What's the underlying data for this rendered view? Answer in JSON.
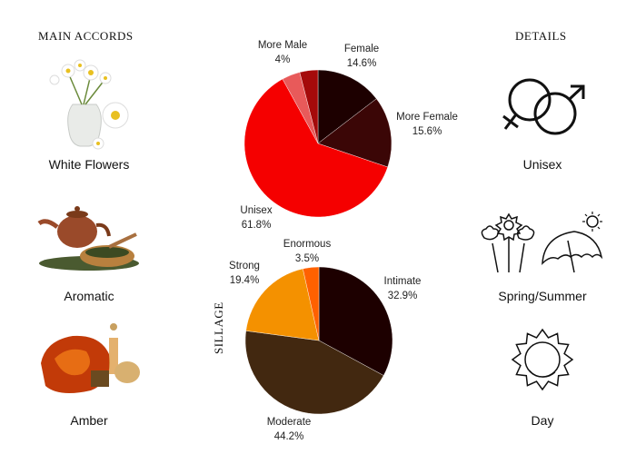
{
  "headers": {
    "main_accords": "MAIN ACCORDS",
    "details": "DETAILS",
    "sillage": "SILLAGE"
  },
  "accords": [
    {
      "label": "White Flowers",
      "icon": "white-flowers-vase-image"
    },
    {
      "label": "Aromatic",
      "icon": "teapot-herbs-image"
    },
    {
      "label": "Amber",
      "icon": "amber-stone-image"
    }
  ],
  "details": [
    {
      "label": "Unisex",
      "icon": "gender-symbols-icon"
    },
    {
      "label": "Spring/Summer",
      "icon": "flowers-umbrella-icon"
    },
    {
      "label": "Day",
      "icon": "sun-icon"
    }
  ],
  "chart_data": [
    {
      "type": "pie",
      "title": "",
      "direction": "clockwise from top",
      "slices": [
        {
          "name": "Female",
          "value": 14.6,
          "label": "14.6%",
          "color": "#1d0000"
        },
        {
          "name": "More Female",
          "value": 15.6,
          "label": "15.6%",
          "color": "#3b0606"
        },
        {
          "name": "Unisex",
          "value": 61.8,
          "label": "61.8%",
          "color": "#f50000"
        },
        {
          "name": "More Male",
          "value": 4,
          "label": "4%",
          "color": "#e85a5a"
        },
        {
          "name": "",
          "value": 4,
          "label": "",
          "color": "#a50a0a"
        }
      ]
    },
    {
      "type": "pie",
      "title": "SILLAGE",
      "direction": "clockwise from top",
      "slices": [
        {
          "name": "Intimate",
          "value": 32.9,
          "label": "32.9%",
          "color": "#1d0000"
        },
        {
          "name": "Moderate",
          "value": 44.2,
          "label": "44.2%",
          "color": "#422810"
        },
        {
          "name": "Strong",
          "value": 19.4,
          "label": "19.4%",
          "color": "#f49100"
        },
        {
          "name": "Enormous",
          "value": 3.5,
          "label": "3.5%",
          "color": "#ff6100"
        }
      ]
    }
  ]
}
